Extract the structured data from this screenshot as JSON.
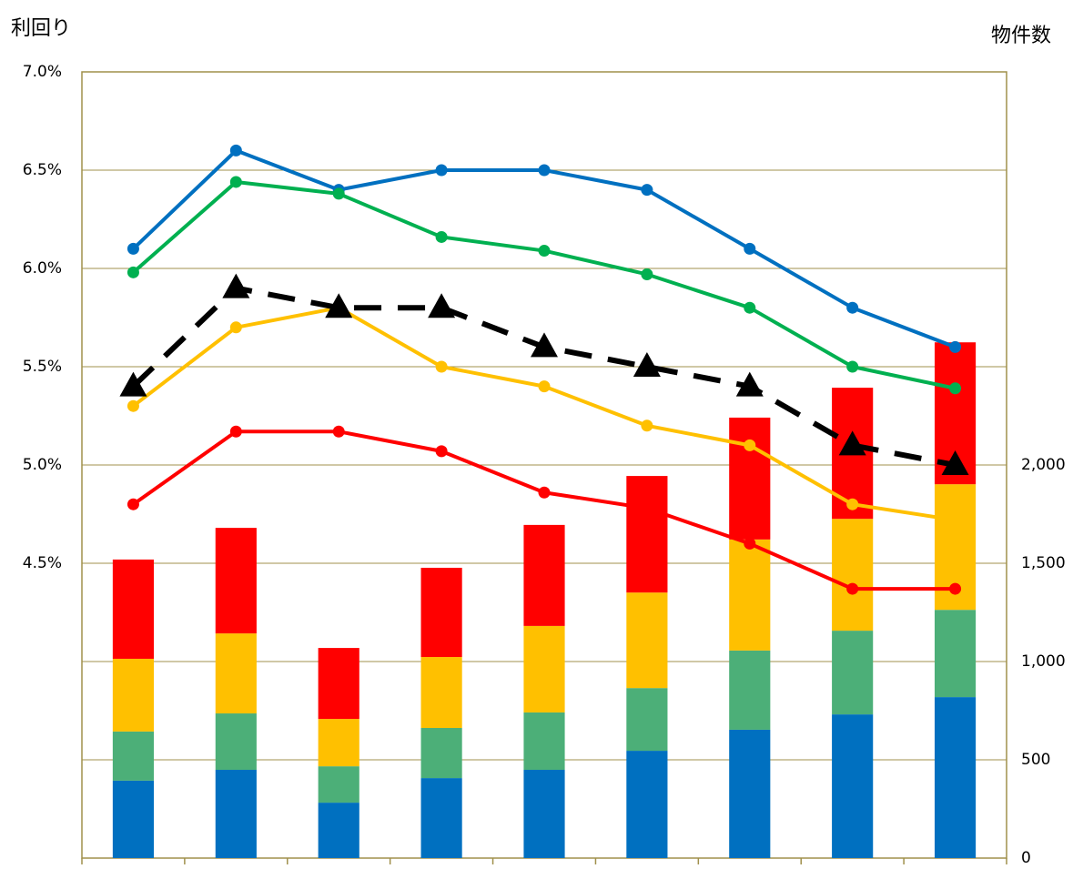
{
  "chart_data": {
    "type": "combo",
    "y_label": "利回り",
    "y2_label": "物件数",
    "categories": [
      null,
      null,
      null,
      null,
      null,
      null,
      null,
      null,
      null
    ],
    "ylim": [
      3.0,
      7.0
    ],
    "yticks": [
      {
        "value": 4.5,
        "label": "4.5%"
      },
      {
        "value": 5.0,
        "label": "5.0%"
      },
      {
        "value": 5.5,
        "label": "5.5%"
      },
      {
        "value": 6.0,
        "label": "6.0%"
      },
      {
        "value": 6.5,
        "label": "6.5%"
      },
      {
        "value": 7.0,
        "label": "7.0%"
      }
    ],
    "y2lim": [
      0,
      4000
    ],
    "y2ticks": [
      0,
      500,
      {
        "value": 1000,
        "label": "1,000"
      },
      {
        "value": 1500,
        "label": "1,500"
      },
      {
        "value": 2000,
        "label": "2,000"
      }
    ],
    "grid": true,
    "series": [
      {
        "type": "bar",
        "axis": "y2",
        "color": "#0070c0",
        "values": [
          394,
          449,
          282,
          407,
          449,
          546,
          653,
          731,
          819
        ]
      },
      {
        "type": "bar",
        "axis": "y2",
        "color": "#4caf78",
        "values": [
          250,
          287,
          185,
          255,
          292,
          319,
          403,
          426,
          444
        ]
      },
      {
        "type": "bar",
        "axis": "y2",
        "color": "#ffc000",
        "values": [
          370,
          407,
          241,
          361,
          440,
          486,
          565,
          569,
          639
        ]
      },
      {
        "type": "bar",
        "axis": "y2",
        "color": "#ff0000",
        "values": [
          505,
          537,
          361,
          454,
          514,
          593,
          620,
          667,
          722
        ]
      },
      {
        "type": "line",
        "color": "#0070c0",
        "marker": "circle",
        "values": [
          6.1,
          6.6,
          6.4,
          6.5,
          6.5,
          6.4,
          6.1,
          5.8,
          5.6
        ]
      },
      {
        "type": "line",
        "color": "#00b050",
        "marker": "circle",
        "values": [
          5.98,
          6.44,
          6.38,
          6.16,
          6.09,
          5.97,
          5.8,
          5.5,
          5.39
        ]
      },
      {
        "type": "line",
        "color": "#ffc000",
        "marker": "circle",
        "values": [
          5.3,
          5.7,
          5.8,
          5.5,
          5.4,
          5.2,
          5.1,
          4.8,
          4.72
        ]
      },
      {
        "type": "line",
        "color": "#ff0000",
        "marker": "circle",
        "values": [
          4.8,
          5.17,
          5.17,
          5.07,
          4.86,
          4.78,
          4.6,
          4.37,
          4.37
        ]
      },
      {
        "type": "line",
        "color": "#000000",
        "marker": "triangle",
        "dashed": true,
        "values": [
          5.4,
          5.9,
          5.8,
          5.8,
          5.6,
          5.5,
          5.4,
          5.1,
          5.0
        ]
      }
    ]
  }
}
